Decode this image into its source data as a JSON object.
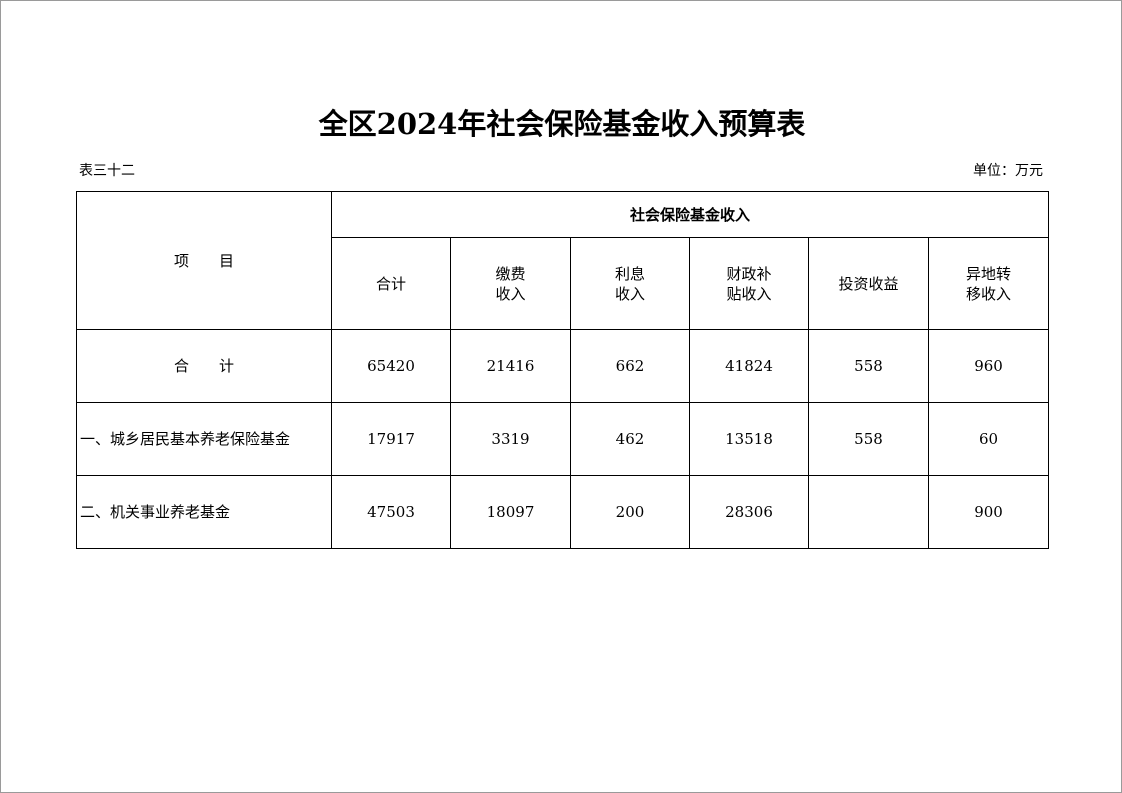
{
  "title": "全区2024年社会保险基金收入预算表",
  "table_no": "表三十二",
  "unit": "单位：万元",
  "header": {
    "item": "项　　目",
    "group": "社会保险基金收入",
    "columns": [
      [
        "合计"
      ],
      [
        "缴费",
        "收入"
      ],
      [
        "利息",
        "收入"
      ],
      [
        "财政补",
        "贴收入"
      ],
      [
        "投资收益"
      ],
      [
        "异地转",
        "移收入"
      ]
    ]
  },
  "rows": [
    {
      "label": "合　　计",
      "values": [
        "65420",
        "21416",
        "662",
        "41824",
        "558",
        "960"
      ]
    },
    {
      "label": "一、城乡居民基本养老保险基金",
      "values": [
        "17917",
        "3319",
        "462",
        "13518",
        "558",
        "60"
      ]
    },
    {
      "label": "二、机关事业养老基金",
      "values": [
        "47503",
        "18097",
        "200",
        "28306",
        "",
        "900"
      ]
    }
  ]
}
